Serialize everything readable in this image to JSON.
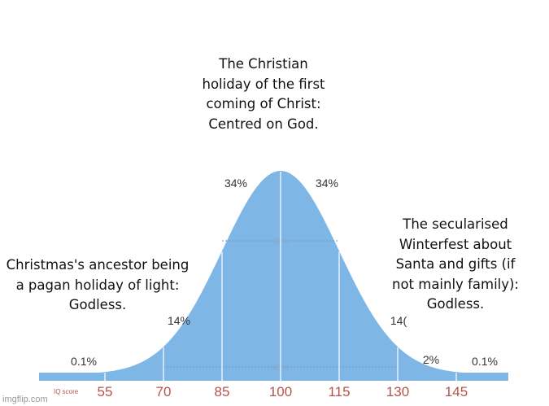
{
  "chart_data": {
    "type": "area",
    "title": "",
    "xlabel": "IQ score",
    "ylabel": "",
    "distribution": "normal",
    "mean": 100,
    "sd": 15,
    "x_ticks": [
      55,
      70,
      85,
      100,
      115,
      130,
      145
    ],
    "fill_color": "#7eb6e6",
    "tick_color": "#b5534a",
    "segment_labels": [
      {
        "range": [
          85,
          100
        ],
        "label": "34%"
      },
      {
        "range": [
          100,
          115
        ],
        "label": "34%"
      },
      {
        "range": [
          70,
          85
        ],
        "label": "14%"
      },
      {
        "range": [
          115,
          130
        ],
        "label": "14("
      },
      {
        "range": [
          130,
          145
        ],
        "label": "2%"
      },
      {
        "range": [
          40,
          55
        ],
        "label": "0.1%"
      },
      {
        "range": [
          145,
          160
        ],
        "label": "0.1%"
      }
    ],
    "band_labels": [
      {
        "range": [
          85,
          115
        ],
        "label": "68%"
      },
      {
        "range": [
          70,
          130
        ],
        "label": "95%"
      }
    ]
  },
  "captions": {
    "center": "The Christian holiday of the first coming of Christ: Centred on God.",
    "left": "Christmas's ancestor being a pagan holiday of light: Godless.",
    "right": "The secularised Winterfest about Santa and gifts (if not mainly family): Godless."
  },
  "watermark": "imgflip.com"
}
